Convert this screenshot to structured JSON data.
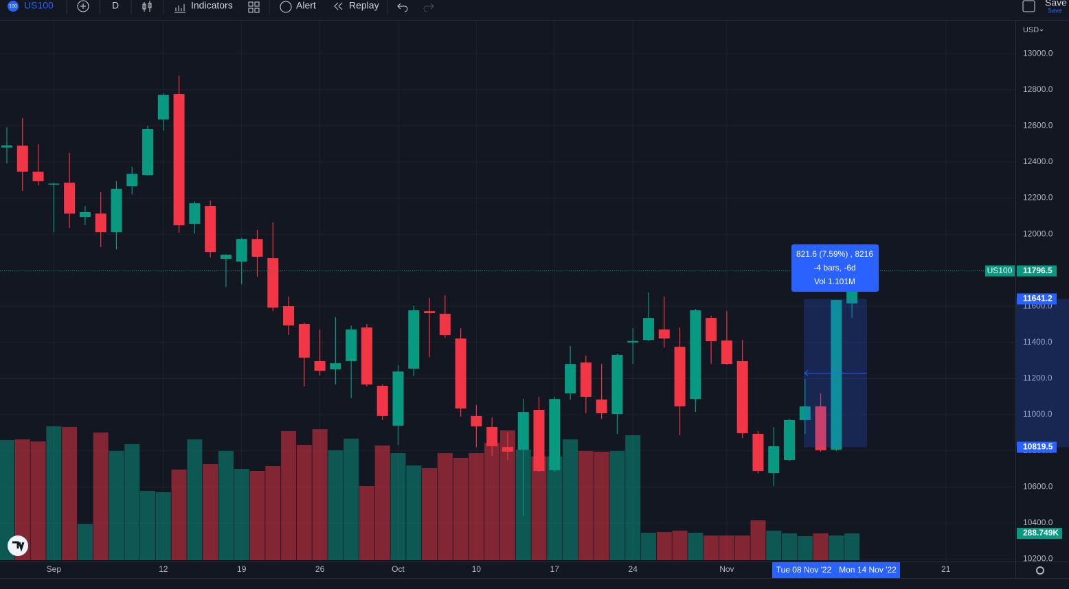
{
  "toolbar": {
    "symbol_icon": "100",
    "symbol": "US100",
    "interval": "D",
    "indicators": "Indicators",
    "alert": "Alert",
    "replay": "Replay",
    "save": "Save",
    "save_sub": "Save"
  },
  "chart_data": {
    "type": "candlestick",
    "currency": "USD",
    "grid": true,
    "up_color": "#089981",
    "down_color": "#f23645",
    "categories": [
      null,
      null,
      null,
      "Sep",
      null,
      null,
      null,
      null,
      null,
      null,
      "12",
      null,
      null,
      null,
      null,
      "19",
      null,
      null,
      null,
      null,
      "26",
      null,
      null,
      null,
      null,
      "Oct",
      null,
      null,
      null,
      null,
      "10",
      null,
      null,
      null,
      null,
      "17",
      null,
      null,
      null,
      null,
      "24",
      null,
      null,
      null,
      null,
      null,
      "Nov",
      null,
      null,
      null,
      null,
      null,
      null,
      null,
      null,
      null,
      null,
      null,
      null,
      null,
      "21"
    ],
    "open": [
      12480,
      12490,
      12346,
      12275,
      12285,
      12095,
      12114,
      12011,
      12266,
      12327,
      12635,
      12776,
      12057,
      12156,
      11863,
      11848,
      11973,
      11867,
      11601,
      11502,
      11297,
      11251,
      11297,
      11483,
      11160,
      10939,
      11255,
      11574,
      11559,
      11422,
      10993,
      10932,
      10821,
      10806,
      11027,
      10692,
      11118,
      11289,
      11084,
      11004,
      11400,
      11414,
      11472,
      11376,
      11087,
      11536,
      11411,
      11297,
      10894,
      10677,
      10749,
      10970,
      11046,
      10806,
      11616,
      null,
      null,
      null,
      null,
      null,
      null
    ],
    "high": [
      12593,
      12643,
      12498,
      12285,
      12449,
      12156,
      12232,
      12293,
      12373,
      12601,
      12780,
      12878,
      12182,
      12186,
      11890,
      11981,
      12023,
      12065,
      11654,
      11510,
      11472,
      11540,
      11494,
      11502,
      11167,
      11274,
      11605,
      11646,
      11662,
      11479,
      11053,
      10985,
      10901,
      11087,
      11099,
      11099,
      11380,
      11327,
      11281,
      11338,
      11479,
      11677,
      11654,
      11483,
      11586,
      11548,
      11574,
      11414,
      10909,
      10932,
      10977,
      11198,
      11118,
      11635,
      11707,
      null,
      null,
      null,
      null,
      null,
      null
    ],
    "low": [
      12392,
      12240,
      12270,
      12010,
      12034,
      12050,
      11928,
      11916,
      12220,
      12323,
      12574,
      12008,
      12004,
      11871,
      11707,
      11722,
      11764,
      11574,
      11441,
      11156,
      11217,
      11167,
      11091,
      11156,
      10970,
      10833,
      11213,
      11319,
      11426,
      10989,
      10821,
      10772,
      10749,
      10437,
      10681,
      10684,
      11084,
      11008,
      10977,
      10893,
      11281,
      11407,
      11372,
      10886,
      11015,
      11281,
      11277,
      10871,
      10673,
      10605,
      10742,
      10894,
      10795,
      10798,
      11536,
      null,
      null,
      null,
      null,
      null,
      null
    ],
    "close": [
      12492,
      12346,
      12293,
      12280,
      12114,
      12122,
      12011,
      12251,
      12334,
      12582,
      12772,
      12049,
      12171,
      11901,
      11886,
      11973,
      11875,
      11593,
      11494,
      11316,
      11243,
      11285,
      11472,
      11167,
      10993,
      11239,
      11578,
      11563,
      11441,
      11034,
      10935,
      10825,
      10795,
      11015,
      10688,
      11087,
      11281,
      11099,
      11008,
      11331,
      11408,
      11536,
      11422,
      11046,
      11578,
      11407,
      11281,
      10897,
      10688,
      10825,
      10970,
      11046,
      10803,
      11635,
      11684,
      null,
      null,
      null,
      null,
      null,
      null
    ],
    "volume": {
      "values": [
        1295,
        1302,
        1280,
        1443,
        1436,
        392,
        1376,
        1177,
        1251,
        747,
        733,
        977,
        1302,
        1036,
        1177,
        984,
        962,
        1014,
        1391,
        1243,
        1413,
        1184,
        1310,
        799,
        1236,
        1154,
        1021,
        992,
        1154,
        1103,
        1154,
        1265,
        1399,
        1191,
        1117,
        1117,
        1302,
        1177,
        1169,
        1177,
        1347,
        296,
        303,
        318,
        296,
        266,
        266,
        266,
        429,
        318,
        289,
        259,
        289,
        266,
        288.749,
        null,
        null,
        null,
        null,
        null,
        null
      ],
      "last_label": "288.749K"
    },
    "ylim": [
      10194,
      13183
    ],
    "yticks": [
      {
        "value": 10200,
        "label": "10200.0"
      },
      {
        "value": 10400,
        "label": "10400.0"
      },
      {
        "value": 10600,
        "label": "10600.0"
      },
      {
        "value": 10800,
        "label": "10800.0"
      },
      {
        "value": 11000,
        "label": "11000.0"
      },
      {
        "value": 11200,
        "label": "11200.0"
      },
      {
        "value": 11400,
        "label": "11400.0"
      },
      {
        "value": 11600,
        "label": "11600.0"
      },
      {
        "value": 11800,
        "label": "11800.0"
      },
      {
        "value": 12000,
        "label": "12000.0"
      },
      {
        "value": 12200,
        "label": "12200.0"
      },
      {
        "value": 12400,
        "label": "12400.0"
      },
      {
        "value": 12600,
        "label": "12600.0"
      },
      {
        "value": 12800,
        "label": "12800.0"
      },
      {
        "value": 13000,
        "label": "13000.0"
      }
    ],
    "last_price": {
      "symbol": "US100",
      "value": 11796.5
    },
    "measure": {
      "top": 11641.2,
      "bottom": 10819.5,
      "lines": [
        "821.6 (7.59%) , 8216",
        "-4 bars, -6d",
        "Vol 1.101M"
      ],
      "start_label": "Tue 08 Nov '22",
      "end_label": "Mon 14 Nov '22"
    }
  }
}
